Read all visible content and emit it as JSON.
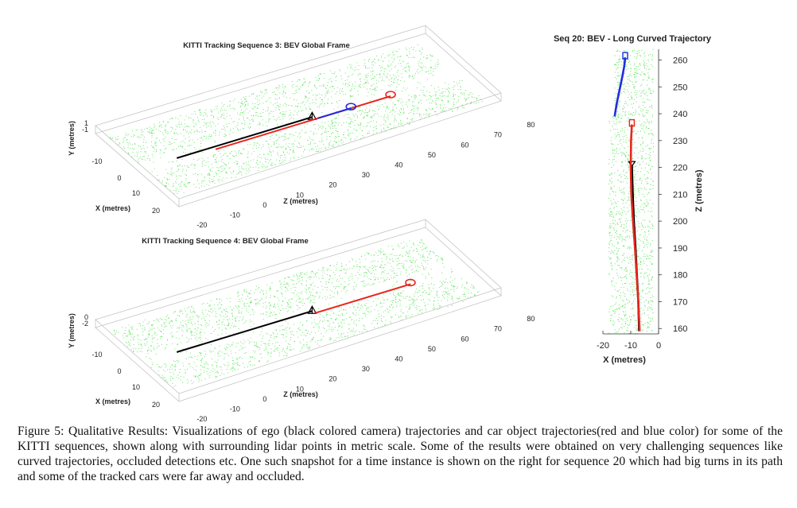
{
  "chart_data": [
    {
      "type": "scatter",
      "title": "KITTI Tracking Sequence 3: BEV Global Frame",
      "xlabel": "X (metres)",
      "ylabel": "Y (metres)",
      "zlabel": "Z (metres)",
      "x_ticks": [
        "-10",
        "0",
        "10",
        "20"
      ],
      "y_ticks": [
        "1",
        "-1"
      ],
      "z_ticks": [
        "-20",
        "-10",
        "0",
        "10",
        "20",
        "30",
        "40",
        "50",
        "60",
        "70",
        "80"
      ],
      "xlim": [
        -20,
        20
      ],
      "zlim": [
        -20,
        80
      ],
      "series": [
        {
          "name": "ego camera trajectory",
          "color": "#000000",
          "z_start": -8,
          "z_end": 33
        },
        {
          "name": "car object trajectory (red)",
          "color": "#e8261c",
          "z_start": 3,
          "z_end": 56
        },
        {
          "name": "car object trajectory (blue)",
          "color": "#1f2de0",
          "z_start": 34,
          "z_end": 44
        },
        {
          "name": "lidar points",
          "color": "#33dd33"
        }
      ]
    },
    {
      "type": "scatter",
      "title": "KITTI Tracking Sequence 4: BEV Global Frame",
      "xlabel": "X (metres)",
      "ylabel": "Y (metres)",
      "zlabel": "Z (metres)",
      "x_ticks": [
        "-10",
        "0",
        "10",
        "20"
      ],
      "y_ticks": [
        "0",
        "-2"
      ],
      "z_ticks": [
        "-20",
        "-10",
        "0",
        "10",
        "20",
        "30",
        "40",
        "50",
        "60",
        "70",
        "80"
      ],
      "xlim": [
        -20,
        20
      ],
      "zlim": [
        -20,
        80
      ],
      "series": [
        {
          "name": "ego camera trajectory",
          "color": "#000000",
          "z_start": -8,
          "z_end": 33
        },
        {
          "name": "car object trajectory (red)",
          "color": "#e8261c",
          "z_start": 33,
          "z_end": 62
        },
        {
          "name": "lidar points",
          "color": "#33dd33"
        }
      ]
    },
    {
      "type": "line",
      "title": "Seq 20: BEV - Long Curved Trajectory",
      "xlabel": "X (metres)",
      "ylabel": "Z (metres)",
      "x_ticks": [
        "-20",
        "-10",
        "0"
      ],
      "y_ticks": [
        "160",
        "170",
        "180",
        "190",
        "200",
        "210",
        "220",
        "230",
        "240",
        "250",
        "260"
      ],
      "xlim": [
        -20,
        0
      ],
      "ylim": [
        158,
        264
      ],
      "series": [
        {
          "name": "ego camera trajectory",
          "color": "#000000",
          "x": [
            -7,
            -7.3,
            -7.8,
            -8.3,
            -8.9,
            -9.3,
            -9.6
          ],
          "y": [
            159,
            170,
            180,
            190,
            200,
            210,
            221
          ]
        },
        {
          "name": "car object trajectory (red)",
          "color": "#e8261c",
          "x": [
            -6.8,
            -7.3,
            -7.9,
            -8.5,
            -9.2,
            -9.8,
            -10.0,
            -9.9,
            -9.6
          ],
          "y": [
            159,
            170,
            180,
            190,
            200,
            210,
            220,
            230,
            236
          ]
        },
        {
          "name": "car object trajectory (blue)",
          "color": "#1f2de0",
          "x": [
            -15.8,
            -15.0,
            -14.0,
            -13.0,
            -12.3,
            -12.0
          ],
          "y": [
            239,
            244,
            249,
            254,
            258,
            261
          ]
        },
        {
          "name": "lidar points",
          "color": "#33dd33"
        }
      ]
    }
  ],
  "caption": "Figure 5: Qualitative Results: Visualizations of ego (black colored camera) trajectories and car object trajectories(red and blue color) for some of the KITTI sequences, shown along with surrounding lidar points in metric scale. Some of the results were obtained on very challenging sequences like curved trajectories, occluded detections etc. One such snapshot for a time instance is shown on the right for sequence 20 which had big turns in its path and some of the tracked cars were far away and occluded."
}
